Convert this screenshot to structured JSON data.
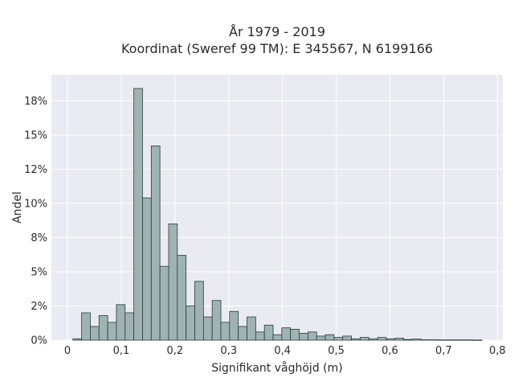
{
  "chart_data": {
    "type": "bar",
    "title": "År 1979 - 2019",
    "subtitle": "Koordinat (Sweref 99 TM): E 345567, N 6199166",
    "xlabel": "Signifikant våghöjd (m)",
    "ylabel": "Andel",
    "xlim": [
      -0.03,
      0.81
    ],
    "ylim": [
      0,
      0.194
    ],
    "grid": true,
    "x_ticks": [
      0,
      0.1,
      0.2,
      0.3,
      0.4,
      0.5,
      0.6,
      0.7,
      0.8
    ],
    "x_tick_labels": [
      "0",
      "0,1",
      "0,2",
      "0,3",
      "0,4",
      "0,5",
      "0,6",
      "0,7",
      "0,8"
    ],
    "y_ticks": [
      0,
      0.025,
      0.05,
      0.075,
      0.1,
      0.125,
      0.15,
      0.175
    ],
    "y_tick_labels": [
      "0%",
      "2%",
      "5%",
      "8%",
      "10%",
      "12%",
      "15%",
      "18%"
    ],
    "bin_width": 0.0162,
    "bin_start": 0.01,
    "values": [
      0.001,
      0.02,
      0.01,
      0.018,
      0.013,
      0.026,
      0.02,
      0.184,
      0.104,
      0.142,
      0.054,
      0.085,
      0.062,
      0.025,
      0.043,
      0.017,
      0.029,
      0.013,
      0.021,
      0.01,
      0.017,
      0.006,
      0.011,
      0.004,
      0.009,
      0.008,
      0.005,
      0.006,
      0.003,
      0.004,
      0.002,
      0.003,
      0.001,
      0.002,
      0.001,
      0.002,
      0.001,
      0.0015,
      0.0005,
      0.0008,
      0.0003,
      0.0003,
      0.0002,
      0.0002,
      0.0002,
      0.0002,
      0.0001
    ],
    "colors": {
      "bar_fill": "#9fb3b2",
      "bar_stroke": "#2e3a3a",
      "plot_bg": "#eaeaf2",
      "grid": "#ffffff"
    }
  }
}
